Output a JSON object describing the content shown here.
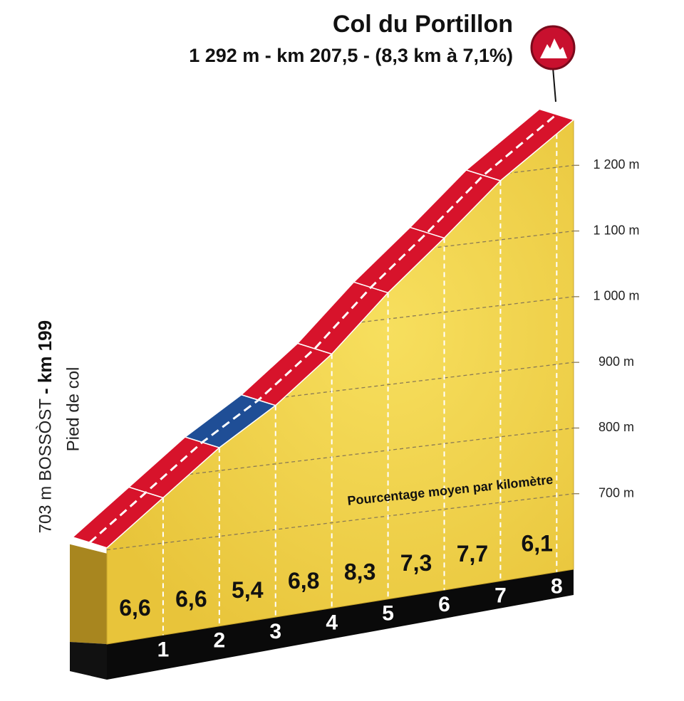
{
  "chart_data": {
    "type": "climb-profile",
    "title": "Col du Portillon",
    "subtitle": "1 292 m - km 207,5 - (8,3 km à 7,1%)",
    "annotation": "Pourcentage moyen par kilomètre",
    "foot": {
      "altitude": {
        "value": 703,
        "label": "703 m BOSSÒST"
      },
      "km": "- km 199",
      "note": "Pied de col"
    },
    "values": [
      6.6,
      6.6,
      5.4,
      6.8,
      8.3,
      7.3,
      7.7,
      6.1
    ],
    "value_labels": [
      "6,6",
      "6,6",
      "5,4",
      "6,8",
      "8,3",
      "7,3",
      "7,7",
      "6,1"
    ],
    "colors": [
      "#d7132b",
      "#d7132b",
      "#1f4e96",
      "#d7132b",
      "#d7132b",
      "#d7132b",
      "#d7132b",
      "#d7132b"
    ],
    "xlim": [
      0,
      8.3
    ],
    "xticks": [
      1,
      2,
      3,
      4,
      5,
      6,
      7,
      8
    ],
    "ylim": [
      600,
      1300
    ],
    "yticks": [
      {
        "value": 700,
        "label": "700 m"
      },
      {
        "value": 800,
        "label": "800 m"
      },
      {
        "value": 900,
        "label": "900 m"
      },
      {
        "value": 1000,
        "label": "1 000 m"
      },
      {
        "value": 1100,
        "label": "1 100 m"
      },
      {
        "value": 1200,
        "label": "1 200 m"
      }
    ],
    "grid": true
  }
}
